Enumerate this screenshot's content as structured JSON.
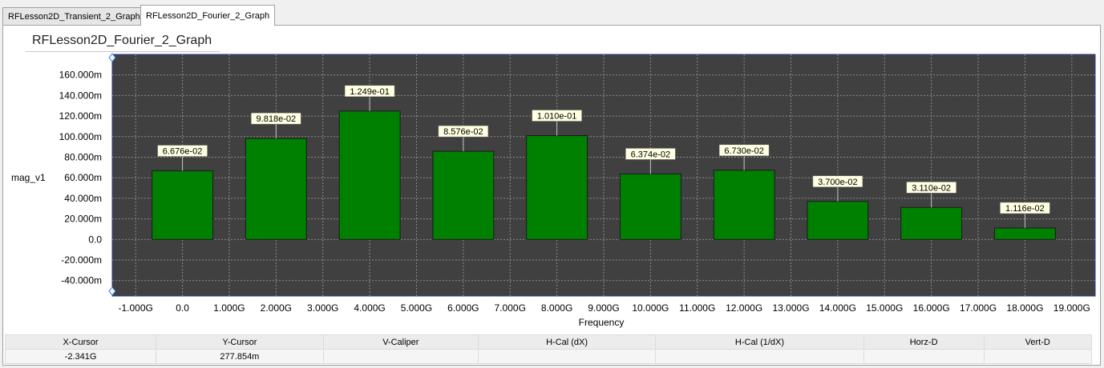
{
  "tabs": [
    {
      "label": "RFLesson2D_Transient_2_Graph",
      "active": false
    },
    {
      "label": "RFLesson2D_Fourier_2_Graph",
      "active": true
    }
  ],
  "graph": {
    "title": "RFLesson2D_Fourier_2_Graph",
    "plot_background": "#404040",
    "bar_color": "#008000"
  },
  "chart_data": {
    "type": "bar",
    "title": "RFLesson2D_Fourier_2_Graph",
    "xlabel": "Frequency",
    "ylabel": "mag_v1",
    "xlim": [
      -1.5,
      19.5
    ],
    "ylim": [
      -55,
      180
    ],
    "grid": true,
    "x": [
      0,
      2,
      4,
      6,
      8,
      10,
      12,
      14,
      16,
      18
    ],
    "values": [
      66.76,
      98.18,
      124.9,
      85.76,
      101.0,
      63.74,
      67.3,
      37.0,
      31.1,
      11.16
    ],
    "data_labels": [
      "6.676e-02",
      "9.818e-02",
      "1.249e-01",
      "8.576e-02",
      "1.010e-01",
      "6.374e-02",
      "6.730e-02",
      "3.700e-02",
      "3.110e-02",
      "1.116e-02"
    ],
    "yticks": [
      {
        "value": 160,
        "label": "160.000m"
      },
      {
        "value": 140,
        "label": "140.000m"
      },
      {
        "value": 120,
        "label": "120.000m"
      },
      {
        "value": 100,
        "label": "100.000m"
      },
      {
        "value": 80,
        "label": "80.000m"
      },
      {
        "value": 60,
        "label": "60.000m"
      },
      {
        "value": 40,
        "label": "40.000m"
      },
      {
        "value": 20,
        "label": "20.000m"
      },
      {
        "value": 0,
        "label": "0.0"
      },
      {
        "value": -20,
        "label": "-20.000m"
      },
      {
        "value": -40,
        "label": "-40.000m"
      }
    ],
    "xticks": [
      {
        "value": -1,
        "label": "-1.000G"
      },
      {
        "value": 0,
        "label": "0.0"
      },
      {
        "value": 1,
        "label": "1.000G"
      },
      {
        "value": 2,
        "label": "2.000G"
      },
      {
        "value": 3,
        "label": "3.000G"
      },
      {
        "value": 4,
        "label": "4.000G"
      },
      {
        "value": 5,
        "label": "5.000G"
      },
      {
        "value": 6,
        "label": "6.000G"
      },
      {
        "value": 7,
        "label": "7.000G"
      },
      {
        "value": 8,
        "label": "8.000G"
      },
      {
        "value": 9,
        "label": "9.000G"
      },
      {
        "value": 10,
        "label": "10.000G"
      },
      {
        "value": 11,
        "label": "11.000G"
      },
      {
        "value": 12,
        "label": "12.000G"
      },
      {
        "value": 13,
        "label": "13.000G"
      },
      {
        "value": 14,
        "label": "14.000G"
      },
      {
        "value": 15,
        "label": "15.000G"
      },
      {
        "value": 16,
        "label": "16.000G"
      },
      {
        "value": 17,
        "label": "17.000G"
      },
      {
        "value": 18,
        "label": "18.000G"
      },
      {
        "value": 19,
        "label": "19.000G"
      }
    ]
  },
  "cursor_table": {
    "headers": [
      "X-Cursor",
      "Y-Cursor",
      "V-Caliper",
      "H-Cal (dX)",
      "H-Cal (1/dX)",
      "Horz-D",
      "Vert-D"
    ],
    "values": [
      "-2.341G",
      "277.854m",
      "",
      "",
      "",
      "",
      ""
    ]
  }
}
